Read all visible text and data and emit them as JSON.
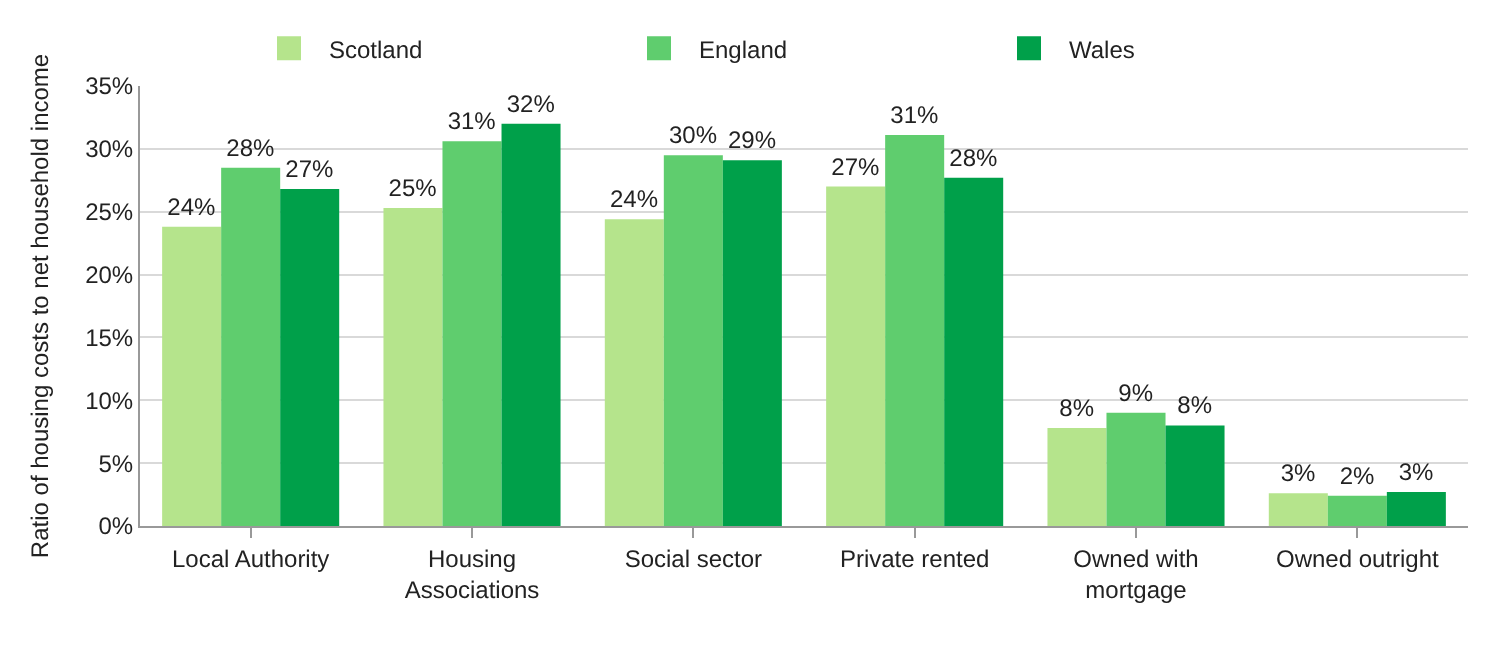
{
  "chart_data": {
    "type": "bar",
    "ylabel": "Ratio of housing costs to net household income",
    "categories": [
      "Local Authority",
      "Housing\nAssociations",
      "Social sector",
      "Private rented",
      "Owned with\nmortgage",
      "Owned outright"
    ],
    "series": [
      {
        "name": "Scotland",
        "color": "#b5e48c",
        "values": [
          23.8,
          25.3,
          24.4,
          27.0,
          7.8,
          2.6
        ],
        "value_labels": [
          "24%",
          "25%",
          "24%",
          "27%",
          "8%",
          "3%"
        ]
      },
      {
        "name": "England",
        "color": "#5fcd6e",
        "values": [
          28.5,
          30.6,
          29.5,
          31.1,
          9.0,
          2.4
        ],
        "value_labels": [
          "28%",
          "31%",
          "30%",
          "31%",
          "9%",
          "2%"
        ]
      },
      {
        "name": "Wales",
        "color": "#00a04a",
        "values": [
          26.8,
          32.0,
          29.1,
          27.7,
          8.0,
          2.7
        ],
        "value_labels": [
          "27%",
          "32%",
          "29%",
          "28%",
          "8%",
          "3%"
        ]
      }
    ],
    "ylim": [
      0,
      35
    ],
    "yticks": [
      {
        "value": 0,
        "label": "0%"
      },
      {
        "value": 5,
        "label": "5%"
      },
      {
        "value": 10,
        "label": "10%"
      },
      {
        "value": 15,
        "label": "15%"
      },
      {
        "value": 20,
        "label": "20%"
      },
      {
        "value": 25,
        "label": "25%"
      },
      {
        "value": 30,
        "label": "30%"
      },
      {
        "value": 35,
        "label": "35%"
      }
    ],
    "grid": "y",
    "legend": "top"
  }
}
